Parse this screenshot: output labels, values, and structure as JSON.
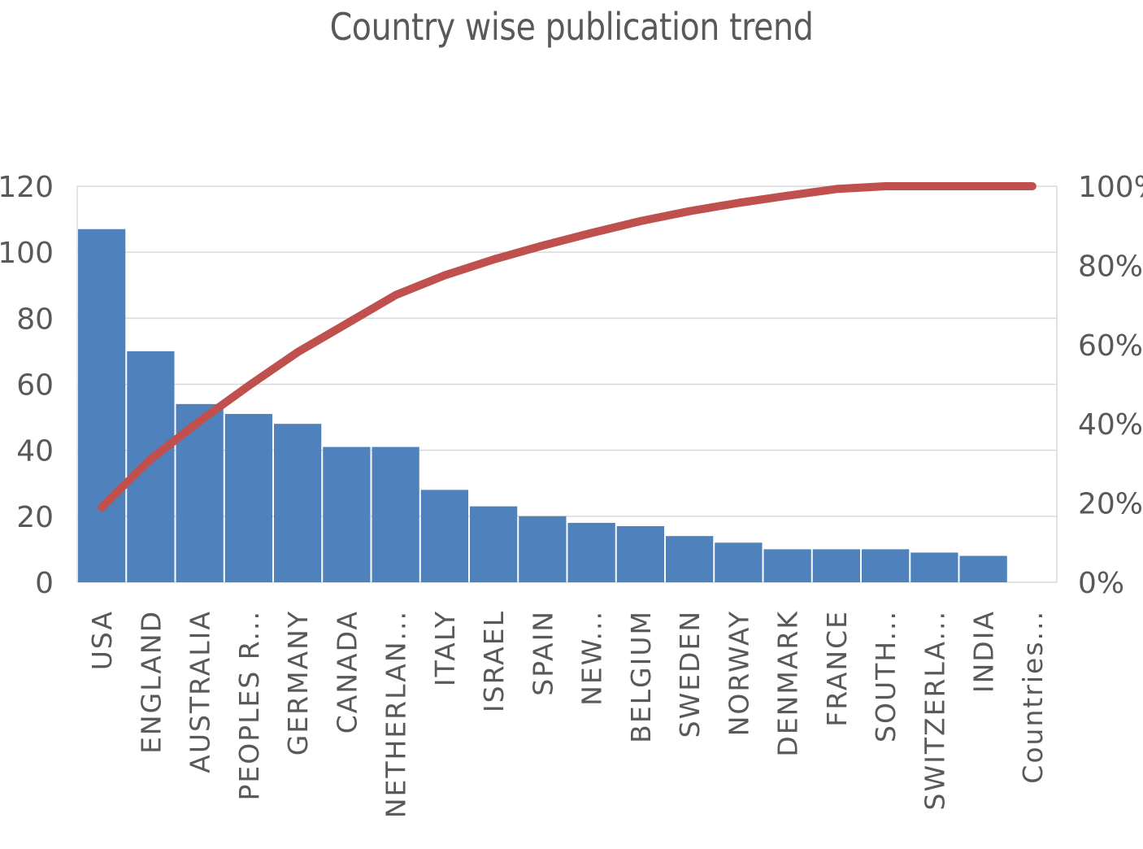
{
  "chart_data": {
    "type": "bar",
    "title": "Country wise publication trend",
    "categories": [
      "USA",
      "ENGLAND",
      "AUSTRALIA",
      "PEOPLES R...",
      "GERMANY",
      "CANADA",
      "NETHERLAN...",
      "ITALY",
      "ISRAEL",
      "SPAIN",
      "NEW...",
      "BELGIUM",
      "SWEDEN",
      "NORWAY",
      "DENMARK",
      "FRANCE",
      "SOUTH...",
      "SWITZERLA...",
      "INDIA",
      "Countries..."
    ],
    "series": [
      {
        "type": "bar",
        "color": "#4F81BD",
        "values": [
          107,
          70,
          54,
          51,
          48,
          41,
          41,
          28,
          23,
          20,
          18,
          17,
          14,
          12,
          10,
          10,
          10,
          9,
          8,
          0
        ]
      },
      {
        "type": "line",
        "axis": "right",
        "color": "#C0504D",
        "values": [
          18.9,
          31.1,
          40.7,
          49.6,
          58.1,
          65.3,
          72.5,
          77.5,
          81.5,
          85.0,
          88.2,
          91.2,
          93.7,
          95.8,
          97.6,
          99.3,
          101.1,
          102.7,
          104.1,
          104.1
        ]
      }
    ],
    "y_left": {
      "ylim": [
        0,
        120
      ],
      "ticks": [
        "0",
        "20",
        "40",
        "60",
        "80",
        "100",
        "120"
      ]
    },
    "y_right": {
      "ylim": [
        0,
        100
      ],
      "ticks": [
        "0%",
        "20%",
        "40%",
        "60%",
        "80%",
        "100%"
      ]
    },
    "grid": true,
    "legend": "none"
  }
}
